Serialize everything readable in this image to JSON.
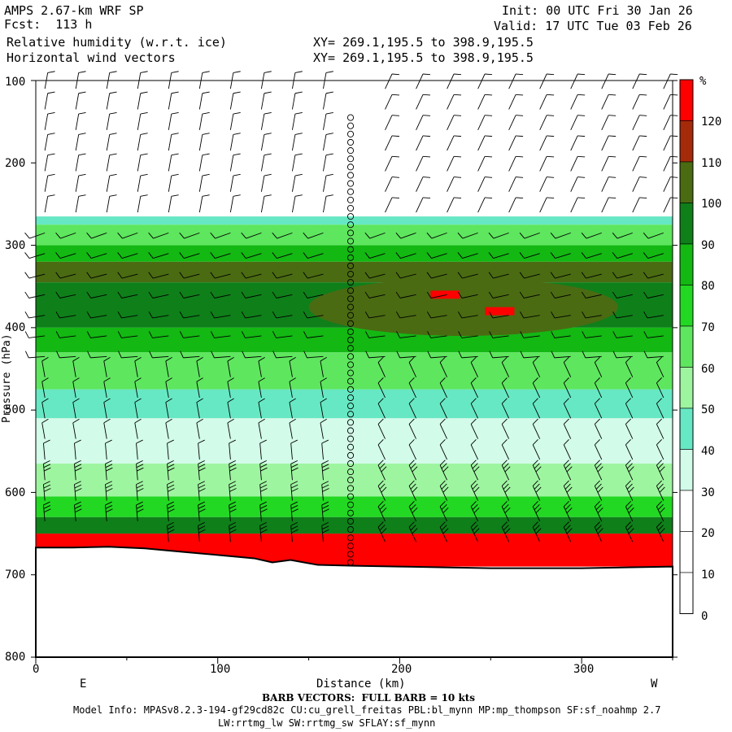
{
  "header": {
    "model_line": "AMPS 2.67-km WRF SP",
    "fcst_line": "Fcst:  113 h",
    "field1": "Relative humidity (w.r.t. ice)",
    "field2": "Horizontal wind vectors",
    "init_line": "Init: 00 UTC Fri 30 Jan 26",
    "valid_line": "Valid: 17 UTC Tue 03 Feb 26",
    "xy1": "XY= 269.1,195.5 to 398.9,195.5",
    "xy2": "XY= 269.1,195.5 to 398.9,195.5"
  },
  "axes": {
    "x_label": "Distance (km)",
    "x_left_dir": "E",
    "x_right_dir": "W",
    "x_ticks": [
      "0",
      "100",
      "200",
      "300"
    ],
    "y_ticks": [
      "100",
      "200",
      "300",
      "400",
      "500",
      "600",
      "700",
      "800"
    ],
    "y_label": "Pressure (hPa)"
  },
  "footer": {
    "barb_note": "BARB VECTORS:  FULL BARB = 10 kts",
    "model_info": "Model Info: MPASv8.2.3-194-gf29cd82c CU:cu_grell_freitas PBL:bl_mynn MP:mp_thompson SF:sf_noahmp 2.7",
    "model_info2": "LW:rrtmg_lw SW:rrtmg_sw SFLAY:sf_mynn"
  },
  "chart_data": {
    "type": "heatmap",
    "xlim": [
      0,
      350
    ],
    "ylim": [
      800,
      100
    ],
    "y_scale": "linear-pressure-inverted",
    "colorbar": {
      "unit": "%",
      "levels": [
        0,
        10,
        20,
        30,
        40,
        50,
        60,
        70,
        80,
        90,
        100,
        110,
        120
      ],
      "colors": [
        "#ffffff",
        "#ffffff",
        "#ffffff",
        "#d2fbe9",
        "#66e8c4",
        "#9ef5a0",
        "#5ee65e",
        "#22d822",
        "#13b813",
        "#0f7f1a",
        "#4a6b12",
        "#a52a0a",
        "#ff0000"
      ]
    },
    "terrain": [
      [
        0,
        667
      ],
      [
        20,
        667
      ],
      [
        40,
        666
      ],
      [
        60,
        668
      ],
      [
        80,
        672
      ],
      [
        100,
        676
      ],
      [
        120,
        680
      ],
      [
        130,
        685
      ],
      [
        140,
        682
      ],
      [
        155,
        688
      ],
      [
        175,
        689
      ],
      [
        200,
        690
      ],
      [
        250,
        692
      ],
      [
        300,
        692
      ],
      [
        350,
        690
      ]
    ],
    "rh_layers": [
      {
        "p_top": 265,
        "p_bot": 275,
        "rh": 40
      },
      {
        "p_top": 275,
        "p_bot": 300,
        "rh": 60
      },
      {
        "p_top": 300,
        "p_bot": 320,
        "rh": 80
      },
      {
        "p_top": 320,
        "p_bot": 345,
        "rh": 100
      },
      {
        "p_top": 345,
        "p_bot": 400,
        "rh": 90
      },
      {
        "p_top": 400,
        "p_bot": 430,
        "rh": 80
      },
      {
        "p_top": 430,
        "p_bot": 475,
        "rh": 60
      },
      {
        "p_top": 475,
        "p_bot": 510,
        "rh": 40
      },
      {
        "p_top": 510,
        "p_bot": 565,
        "rh": 30
      },
      {
        "p_top": 565,
        "p_bot": 605,
        "rh": 50
      },
      {
        "p_top": 605,
        "p_bot": 630,
        "rh": 70
      },
      {
        "p_top": 630,
        "p_bot": 650,
        "rh": 90
      },
      {
        "p_top": 650,
        "p_bot": 690,
        "rh": 120
      }
    ],
    "rh_max_patches": [
      {
        "x": 225,
        "p": 360,
        "rh": 120
      },
      {
        "x": 255,
        "p": 380,
        "rh": 120
      }
    ],
    "calm_column_km": 173
  }
}
